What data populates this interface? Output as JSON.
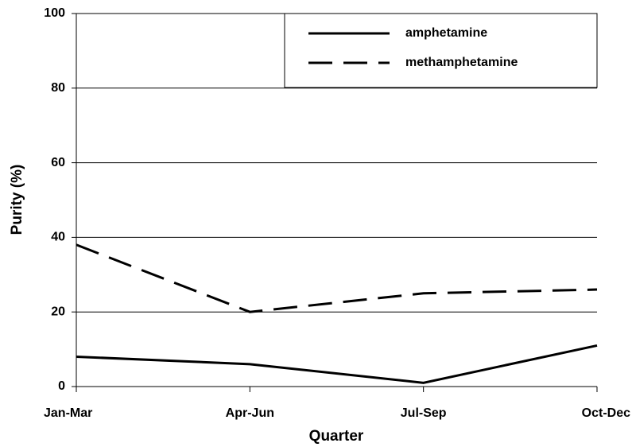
{
  "chart_data": {
    "type": "line",
    "x_label": "Quarter",
    "y_label": "Purity (%)",
    "categories": [
      "Jan-Mar",
      "Apr-Jun",
      "Jul-Sep",
      "Oct-Dec"
    ],
    "series": [
      {
        "name": "amphetamine",
        "color": "#000000",
        "dash": "solid",
        "values": [
          8,
          6,
          1,
          11
        ]
      },
      {
        "name": "methamphetamine",
        "color": "#000000",
        "dash": "dashed",
        "values": [
          38,
          20,
          25,
          26
        ]
      }
    ],
    "ylim": [
      0,
      100
    ],
    "yticks": [
      0,
      20,
      40,
      60,
      80,
      100
    ],
    "grid": true,
    "legend": "upper-right"
  }
}
